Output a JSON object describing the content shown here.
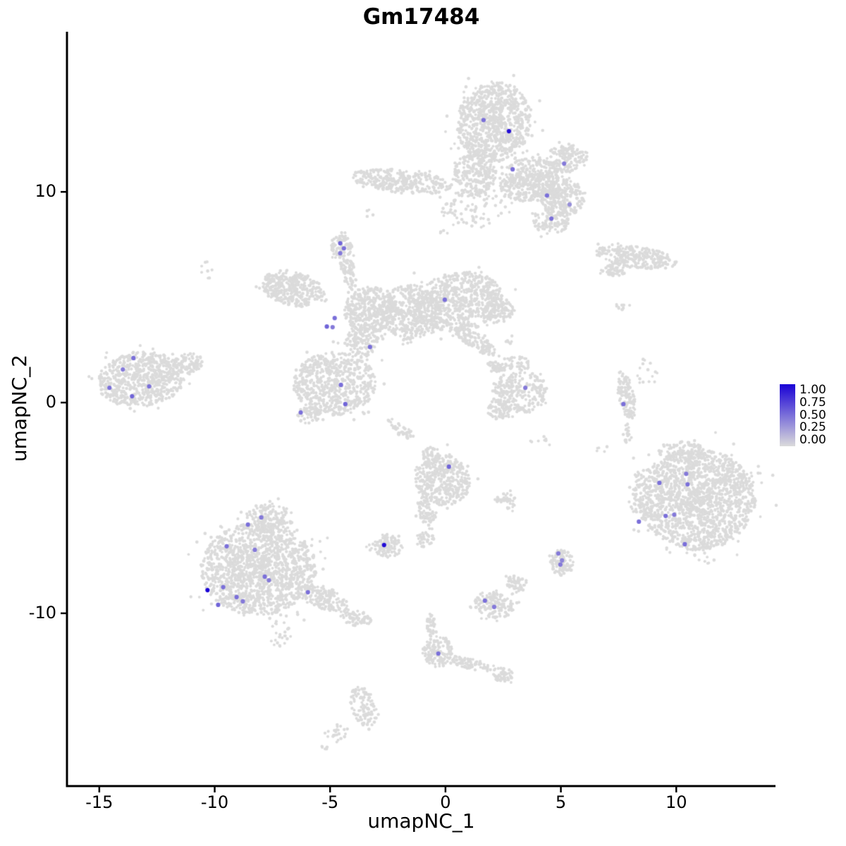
{
  "figure": {
    "title": "Gm17484",
    "xlabel": "umapNC_1",
    "ylabel": "umapNC_2"
  },
  "legend": {
    "labels": [
      "1.00",
      "0.75",
      "0.50",
      "0.25",
      "0.00"
    ],
    "high_color": "#1902D6",
    "low_color": "#DBDBDB"
  },
  "chart_data": {
    "type": "scatter",
    "title": "Gm17484",
    "xlabel": "umapNC_1",
    "ylabel": "umapNC_2",
    "xlim": [
      -16.4,
      14.3
    ],
    "ylim": [
      -18.2,
      17.6
    ],
    "x_ticks": [
      -15,
      -10,
      -5,
      0,
      5,
      10
    ],
    "x_tick_labels": [
      "-15",
      "-10",
      "-5",
      "0",
      "5",
      "10"
    ],
    "y_ticks": [
      10,
      0,
      -10
    ],
    "y_tick_labels": [
      "10",
      "0",
      "-10"
    ],
    "grid": false,
    "legend_position": "right",
    "colorbar_range": [
      0.0,
      1.0
    ],
    "point_color_low": "#DBDBDB",
    "point_color_high": "#1902D6",
    "background_clusters": [
      {
        "cx": 2.1,
        "cy": 13.3,
        "rx": 1.6,
        "ry": 1.9,
        "rot": -10,
        "n": 900
      },
      {
        "cx": 1.3,
        "cy": 10.9,
        "rx": 0.9,
        "ry": 1.1,
        "rot": 0,
        "n": 250
      },
      {
        "cx": -1.9,
        "cy": 10.5,
        "rx": 2.2,
        "ry": 0.55,
        "rot": -6,
        "n": 300
      },
      {
        "cx": 3.6,
        "cy": 10.6,
        "rx": 1.3,
        "ry": 1.0,
        "rot": 20,
        "n": 350
      },
      {
        "cx": 4.9,
        "cy": 9.9,
        "rx": 1.2,
        "ry": 0.9,
        "rot": -30,
        "n": 320
      },
      {
        "cx": 5.3,
        "cy": 11.6,
        "rx": 0.9,
        "ry": 0.7,
        "rot": 0,
        "n": 140
      },
      {
        "cx": 4.6,
        "cy": 8.6,
        "rx": 0.8,
        "ry": 0.6,
        "rot": 0,
        "n": 120
      },
      {
        "cx": 1.2,
        "cy": 9.2,
        "rx": 1.4,
        "ry": 0.9,
        "rot": 0,
        "n": 80
      },
      {
        "cx": 8.3,
        "cy": 6.9,
        "rx": 1.8,
        "ry": 0.5,
        "rot": -8,
        "n": 260
      },
      {
        "cx": 7.3,
        "cy": 6.3,
        "rx": 0.5,
        "ry": 0.3,
        "rot": 0,
        "n": 50
      },
      {
        "cx": 7.7,
        "cy": 4.6,
        "rx": 0.3,
        "ry": 0.25,
        "rot": 0,
        "n": 10
      },
      {
        "cx": -6.6,
        "cy": 5.4,
        "rx": 1.4,
        "ry": 0.8,
        "rot": -15,
        "n": 350
      },
      {
        "cx": -4.5,
        "cy": 7.4,
        "rx": 0.45,
        "ry": 0.55,
        "rot": 0,
        "n": 90
      },
      {
        "cx": -4.2,
        "cy": 6.2,
        "rx": 0.3,
        "ry": 0.9,
        "rot": 15,
        "n": 70
      },
      {
        "cx": -3.2,
        "cy": 4.4,
        "rx": 1.2,
        "ry": 1.1,
        "rot": 0,
        "n": 380
      },
      {
        "cx": -1.5,
        "cy": 4.3,
        "rx": 1.3,
        "ry": 1.3,
        "rot": 0,
        "n": 420
      },
      {
        "cx": 0.6,
        "cy": 4.8,
        "rx": 1.9,
        "ry": 1.4,
        "rot": 10,
        "n": 650
      },
      {
        "cx": 2.3,
        "cy": 4.4,
        "rx": 0.7,
        "ry": 0.6,
        "rot": 0,
        "n": 100
      },
      {
        "cx": 1.3,
        "cy": 2.9,
        "rx": 1.1,
        "ry": 0.35,
        "rot": -35,
        "n": 120
      },
      {
        "cx": 2.2,
        "cy": 1.7,
        "rx": 0.4,
        "ry": 0.3,
        "rot": -35,
        "n": 40
      },
      {
        "cx": -3.6,
        "cy": 2.9,
        "rx": 0.7,
        "ry": 0.8,
        "rot": 0,
        "n": 140
      },
      {
        "cx": -4.8,
        "cy": 0.9,
        "rx": 1.8,
        "ry": 1.5,
        "rot": 0,
        "n": 650
      },
      {
        "cx": -5.9,
        "cy": -0.6,
        "rx": 0.5,
        "ry": 0.4,
        "rot": 0,
        "n": 50
      },
      {
        "cx": -1.9,
        "cy": -1.3,
        "rx": 0.8,
        "ry": 0.25,
        "rot": -40,
        "n": 40
      },
      {
        "cx": -13.2,
        "cy": 1.1,
        "rx": 1.9,
        "ry": 1.3,
        "rot": 8,
        "n": 700
      },
      {
        "cx": -11.2,
        "cy": 1.8,
        "rx": 0.7,
        "ry": 0.5,
        "rot": 20,
        "n": 90
      },
      {
        "cx": 3.2,
        "cy": 0.5,
        "rx": 1.2,
        "ry": 1.0,
        "rot": 0,
        "n": 260
      },
      {
        "cx": 2.3,
        "cy": -0.4,
        "rx": 0.5,
        "ry": 0.4,
        "rot": 0,
        "n": 60
      },
      {
        "cx": 3.1,
        "cy": 1.9,
        "rx": 0.6,
        "ry": 0.4,
        "rot": 0,
        "n": 40
      },
      {
        "cx": 7.85,
        "cy": 0.3,
        "rx": 0.35,
        "ry": 1.1,
        "rot": 10,
        "n": 120
      },
      {
        "cx": 7.9,
        "cy": -1.5,
        "rx": 0.2,
        "ry": 0.5,
        "rot": 0,
        "n": 20
      },
      {
        "cx": 8.7,
        "cy": 1.2,
        "rx": 0.5,
        "ry": 1.0,
        "rot": 0,
        "n": 15
      },
      {
        "cx": 10.9,
        "cy": -4.6,
        "rx": 2.5,
        "ry": 2.4,
        "rot": 0,
        "n": 1600
      },
      {
        "cx": 8.8,
        "cy": -4.3,
        "rx": 0.9,
        "ry": 1.3,
        "rot": 0,
        "n": 120
      },
      {
        "cx": 10.2,
        "cy": -2.3,
        "rx": 1.0,
        "ry": 0.5,
        "rot": 0,
        "n": 80
      },
      {
        "cx": -0.1,
        "cy": -3.7,
        "rx": 1.2,
        "ry": 1.2,
        "rot": 0,
        "n": 380
      },
      {
        "cx": -0.6,
        "cy": -2.5,
        "rx": 0.4,
        "ry": 0.4,
        "rot": 0,
        "n": 50
      },
      {
        "cx": -0.8,
        "cy": -5.3,
        "rx": 0.35,
        "ry": 0.8,
        "rot": 20,
        "n": 70
      },
      {
        "cx": -2.5,
        "cy": -6.8,
        "rx": 0.7,
        "ry": 0.55,
        "rot": 0,
        "n": 110
      },
      {
        "cx": -0.9,
        "cy": -6.5,
        "rx": 0.4,
        "ry": 0.35,
        "rot": 0,
        "n": 40
      },
      {
        "cx": 2.6,
        "cy": -4.7,
        "rx": 0.5,
        "ry": 0.4,
        "rot": 0,
        "n": 40
      },
      {
        "cx": -8.1,
        "cy": -7.9,
        "rx": 2.5,
        "ry": 2.2,
        "rot": 0,
        "n": 1500
      },
      {
        "cx": -7.6,
        "cy": -5.5,
        "rx": 1.0,
        "ry": 0.7,
        "rot": 0,
        "n": 150
      },
      {
        "cx": -5.2,
        "cy": -9.3,
        "rx": 1.0,
        "ry": 0.5,
        "rot": -20,
        "n": 130
      },
      {
        "cx": -3.9,
        "cy": -10.2,
        "rx": 0.7,
        "ry": 0.4,
        "rot": -20,
        "n": 70
      },
      {
        "cx": -7.2,
        "cy": -11.0,
        "rx": 0.4,
        "ry": 0.7,
        "rot": 0,
        "n": 25
      },
      {
        "cx": 2.1,
        "cy": -9.6,
        "rx": 0.9,
        "ry": 0.6,
        "rot": -15,
        "n": 150
      },
      {
        "cx": 3.1,
        "cy": -8.6,
        "rx": 0.5,
        "ry": 0.4,
        "rot": -30,
        "n": 50
      },
      {
        "cx": 5.05,
        "cy": -7.6,
        "rx": 0.5,
        "ry": 0.6,
        "rot": 0,
        "n": 110
      },
      {
        "cx": -0.35,
        "cy": -11.8,
        "rx": 0.65,
        "ry": 0.75,
        "rot": 0,
        "n": 130
      },
      {
        "cx": -0.6,
        "cy": -10.6,
        "rx": 0.2,
        "ry": 0.6,
        "rot": 5,
        "n": 40
      },
      {
        "cx": 1.1,
        "cy": -12.4,
        "rx": 1.0,
        "ry": 0.25,
        "rot": -15,
        "n": 80
      },
      {
        "cx": 2.5,
        "cy": -12.9,
        "rx": 0.45,
        "ry": 0.35,
        "rot": 0,
        "n": 50
      },
      {
        "cx": -3.55,
        "cy": -14.4,
        "rx": 0.55,
        "ry": 1.0,
        "rot": 15,
        "n": 110
      },
      {
        "cx": -4.7,
        "cy": -15.7,
        "rx": 0.5,
        "ry": 0.4,
        "rot": 30,
        "n": 22
      },
      {
        "cx": -5.3,
        "cy": -16.4,
        "rx": 0.15,
        "ry": 0.15,
        "rot": 0,
        "n": 5
      },
      {
        "cx": -10.3,
        "cy": 6.3,
        "rx": 0.3,
        "ry": 0.4,
        "rot": 0,
        "n": 8
      },
      {
        "cx": -3.4,
        "cy": 9.0,
        "rx": 0.3,
        "ry": 0.3,
        "rot": 0,
        "n": 4
      },
      {
        "cx": -0.2,
        "cy": 8.0,
        "rx": 0.3,
        "ry": 0.3,
        "rot": 0,
        "n": 4
      },
      {
        "cx": 2.6,
        "cy": 2.9,
        "rx": 0.3,
        "ry": 0.3,
        "rot": 0,
        "n": 6
      },
      {
        "cx": 4.0,
        "cy": -1.9,
        "rx": 0.5,
        "ry": 0.4,
        "rot": 0,
        "n": 8
      },
      {
        "cx": 6.8,
        "cy": -2.3,
        "rx": 0.3,
        "ry": 0.3,
        "rot": 0,
        "n": 5
      }
    ],
    "expressing_cells": [
      {
        "x": 1.65,
        "y": 13.41,
        "value": 0.5
      },
      {
        "x": 2.75,
        "y": 12.88,
        "value": 0.95
      },
      {
        "x": 2.91,
        "y": 11.07,
        "value": 0.5
      },
      {
        "x": 5.14,
        "y": 11.34,
        "value": 0.45
      },
      {
        "x": 4.4,
        "y": 9.83,
        "value": 0.5
      },
      {
        "x": 5.38,
        "y": 9.4,
        "value": 0.35
      },
      {
        "x": 4.59,
        "y": 8.73,
        "value": 0.5
      },
      {
        "x": -4.56,
        "y": 7.56,
        "value": 0.55
      },
      {
        "x": -4.4,
        "y": 7.32,
        "value": 0.5
      },
      {
        "x": -4.56,
        "y": 7.09,
        "value": 0.45
      },
      {
        "x": -0.03,
        "y": 4.88,
        "value": 0.5
      },
      {
        "x": -4.8,
        "y": 4.01,
        "value": 0.5
      },
      {
        "x": -5.14,
        "y": 3.61,
        "value": 0.55
      },
      {
        "x": -4.89,
        "y": 3.58,
        "value": 0.45
      },
      {
        "x": -3.27,
        "y": 2.64,
        "value": 0.5
      },
      {
        "x": -4.53,
        "y": 0.84,
        "value": 0.5
      },
      {
        "x": -4.34,
        "y": -0.07,
        "value": 0.55
      },
      {
        "x": -6.27,
        "y": -0.47,
        "value": 0.5
      },
      {
        "x": -13.52,
        "y": 2.11,
        "value": 0.5
      },
      {
        "x": -13.98,
        "y": 1.57,
        "value": 0.45
      },
      {
        "x": -12.84,
        "y": 0.77,
        "value": 0.5
      },
      {
        "x": -14.56,
        "y": 0.7,
        "value": 0.5
      },
      {
        "x": -13.58,
        "y": 0.3,
        "value": 0.55
      },
      {
        "x": 3.46,
        "y": 0.7,
        "value": 0.45
      },
      {
        "x": 7.71,
        "y": -0.07,
        "value": 0.5
      },
      {
        "x": 0.15,
        "y": -3.04,
        "value": 0.55
      },
      {
        "x": 9.27,
        "y": -3.81,
        "value": 0.5
      },
      {
        "x": 10.43,
        "y": -3.38,
        "value": 0.45
      },
      {
        "x": 10.49,
        "y": -3.88,
        "value": 0.5
      },
      {
        "x": 8.38,
        "y": -5.65,
        "value": 0.5
      },
      {
        "x": 9.54,
        "y": -5.38,
        "value": 0.5
      },
      {
        "x": 9.91,
        "y": -5.32,
        "value": 0.45
      },
      {
        "x": 10.37,
        "y": -6.72,
        "value": 0.5
      },
      {
        "x": -2.66,
        "y": -6.76,
        "value": 0.95
      },
      {
        "x": 4.89,
        "y": -7.16,
        "value": 0.45
      },
      {
        "x": 5.05,
        "y": -7.49,
        "value": 0.4
      },
      {
        "x": 4.98,
        "y": -7.69,
        "value": 0.45
      },
      {
        "x": -8.56,
        "y": -5.79,
        "value": 0.5
      },
      {
        "x": -7.98,
        "y": -5.45,
        "value": 0.45
      },
      {
        "x": -9.48,
        "y": -6.82,
        "value": 0.5
      },
      {
        "x": -8.26,
        "y": -6.99,
        "value": 0.45
      },
      {
        "x": -7.83,
        "y": -8.26,
        "value": 0.5
      },
      {
        "x": -7.65,
        "y": -8.43,
        "value": 0.45
      },
      {
        "x": -10.31,
        "y": -8.9,
        "value": 1.0
      },
      {
        "x": -9.63,
        "y": -8.76,
        "value": 0.5
      },
      {
        "x": -9.85,
        "y": -9.6,
        "value": 0.55
      },
      {
        "x": -9.05,
        "y": -9.23,
        "value": 0.5
      },
      {
        "x": -8.78,
        "y": -9.43,
        "value": 0.45
      },
      {
        "x": -5.96,
        "y": -9.0,
        "value": 0.5
      },
      {
        "x": 1.71,
        "y": -9.4,
        "value": 0.5
      },
      {
        "x": 2.11,
        "y": -9.7,
        "value": 0.45
      },
      {
        "x": -0.31,
        "y": -11.91,
        "value": 0.5
      }
    ]
  }
}
